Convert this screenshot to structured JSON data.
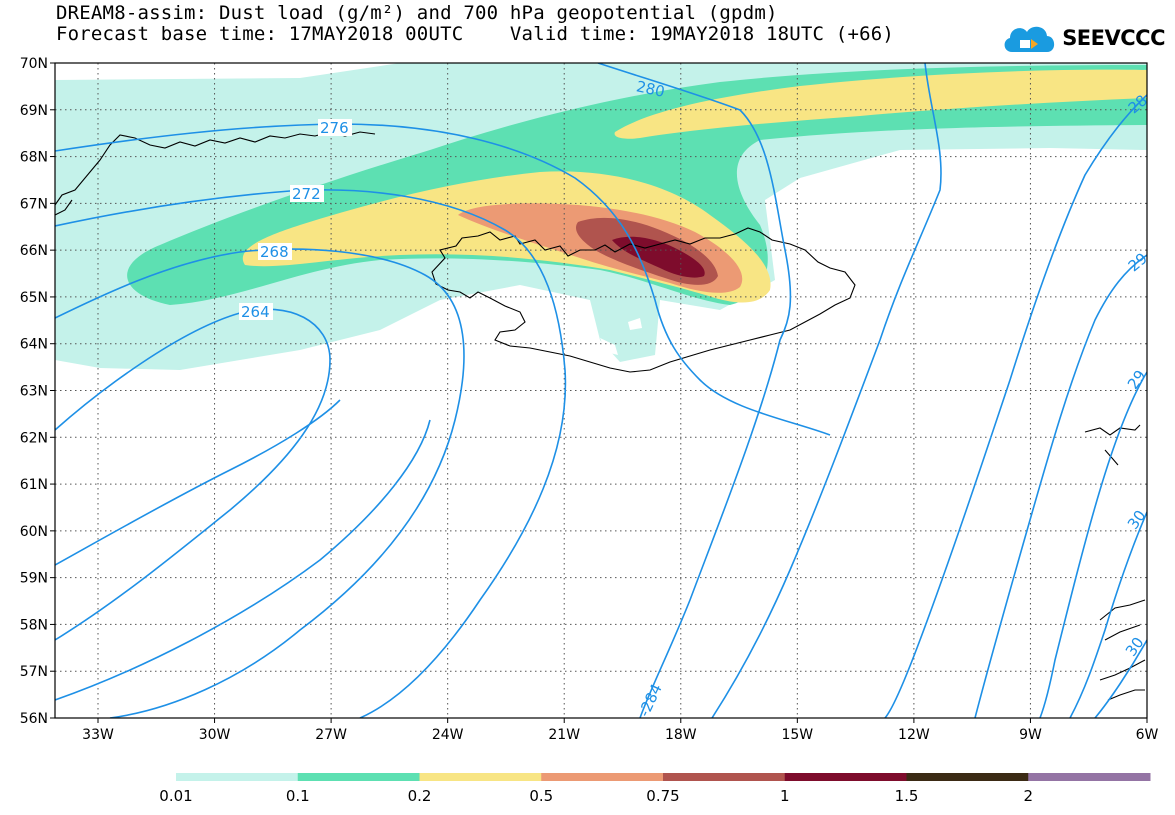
{
  "title": {
    "line1": "DREAM8-assim: Dust load (g/m²) and 700 hPa geopotential (gpdm)",
    "line2": "Forecast base time: 17MAY2018 00UTC    Valid time: 19MAY2018 18UTC (+66)"
  },
  "logo": {
    "text": "SEEVCCC",
    "icon": "cloud-icon",
    "color": "#1a9be0"
  },
  "map": {
    "lat_labels": [
      "70N",
      "69N",
      "68N",
      "67N",
      "66N",
      "65N",
      "64N",
      "63N",
      "62N",
      "61N",
      "60N",
      "59N",
      "58N",
      "57N",
      "56N"
    ],
    "lon_labels": [
      "33W",
      "30W",
      "27W",
      "24W",
      "21W",
      "18W",
      "15W",
      "12W",
      "9W",
      "6W"
    ],
    "contour_color": "#1e90e6",
    "contour_labels": [
      "276",
      "272",
      "268",
      "264",
      "280",
      "-284",
      "28",
      "29",
      "29",
      "30",
      "30"
    ]
  },
  "colorbar": {
    "colors": [
      "#c4f2ea",
      "#5de0b2",
      "#f8e584",
      "#ec9a74",
      "#b0544e",
      "#7e0c2c",
      "#3b2a14",
      "#9474a4"
    ],
    "labels": [
      "0.01",
      "0.1",
      "0.2",
      "0.5",
      "0.75",
      "1",
      "1.5",
      "2"
    ]
  }
}
